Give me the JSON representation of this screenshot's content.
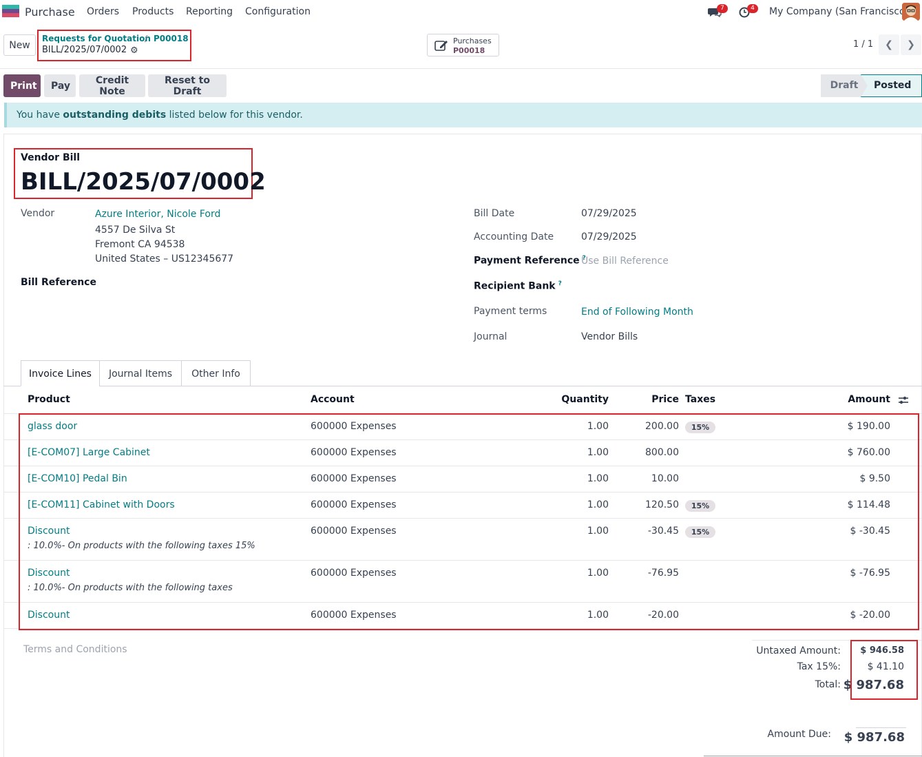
{
  "navbar": {
    "app_name": "Purchase",
    "menu": [
      "Orders",
      "Products",
      "Reporting",
      "Configuration"
    ],
    "messages_badge": "7",
    "activities_badge": "4",
    "company": "My Company (San Francisco)"
  },
  "control": {
    "new_label": "New",
    "breadcrumb_parent": "Requests for Quotation",
    "breadcrumb_separator": "/",
    "breadcrumb_mid": "P00018",
    "breadcrumb_current": "BILL/2025/07/0002",
    "smart_button_title": "Purchases",
    "smart_button_value": "P00018",
    "pager": "1 / 1"
  },
  "actions": {
    "print": "Print",
    "pay": "Pay",
    "credit_note": "Credit Note",
    "reset_to_draft": "Reset to Draft"
  },
  "status": {
    "draft": "Draft",
    "posted": "Posted",
    "active": "Posted"
  },
  "alert": {
    "prefix": "You have ",
    "bold": "outstanding debits",
    "suffix": " listed below for this vendor."
  },
  "document": {
    "type": "Vendor Bill",
    "name": "BILL/2025/07/0002"
  },
  "left_fields": {
    "vendor_label": "Vendor",
    "vendor_name": "Azure Interior, Nicole Ford",
    "address_line1": "4557 De Silva St",
    "address_line2": "Fremont CA 94538",
    "address_line3": "United States – US12345677",
    "bill_reference_label": "Bill Reference"
  },
  "right_fields": {
    "bill_date_label": "Bill Date",
    "bill_date": "07/29/2025",
    "accounting_date_label": "Accounting Date",
    "accounting_date": "07/29/2025",
    "payment_reference_label": "Payment Reference",
    "payment_reference_placeholder": "Use Bill Reference",
    "recipient_bank_label": "Recipient Bank",
    "help_mark": "?",
    "payment_terms_label": "Payment terms",
    "payment_terms": "End of Following Month",
    "journal_label": "Journal",
    "journal": "Vendor Bills"
  },
  "tabs": [
    "Invoice Lines",
    "Journal Items",
    "Other Info"
  ],
  "table": {
    "headers": {
      "product": "Product",
      "account": "Account",
      "quantity": "Quantity",
      "price": "Price",
      "taxes": "Taxes",
      "amount": "Amount"
    },
    "rows": [
      {
        "product": "glass door",
        "note": "",
        "account": "600000 Expenses",
        "quantity": "1.00",
        "price": "200.00",
        "tax": "15%",
        "amount": "$ 190.00"
      },
      {
        "product": "[E-COM07] Large Cabinet",
        "note": "",
        "account": "600000 Expenses",
        "quantity": "1.00",
        "price": "800.00",
        "tax": "",
        "amount": "$ 760.00"
      },
      {
        "product": "[E-COM10] Pedal Bin",
        "note": "",
        "account": "600000 Expenses",
        "quantity": "1.00",
        "price": "10.00",
        "tax": "",
        "amount": "$ 9.50"
      },
      {
        "product": "[E-COM11] Cabinet with Doors",
        "note": "",
        "account": "600000 Expenses",
        "quantity": "1.00",
        "price": "120.50",
        "tax": "15%",
        "amount": "$ 114.48"
      },
      {
        "product": "Discount",
        "note": ": 10.0%- On products with the following taxes 15%",
        "account": "600000 Expenses",
        "quantity": "1.00",
        "price": "-30.45",
        "tax": "15%",
        "amount": "$ -30.45"
      },
      {
        "product": "Discount",
        "note": ": 10.0%- On products with the following taxes",
        "account": "600000 Expenses",
        "quantity": "1.00",
        "price": "-76.95",
        "tax": "",
        "amount": "$ -76.95"
      },
      {
        "product": "Discount",
        "note": "",
        "account": "600000 Expenses",
        "quantity": "1.00",
        "price": "-20.00",
        "tax": "",
        "amount": "$ -20.00"
      }
    ]
  },
  "terms_placeholder": "Terms and Conditions",
  "totals": {
    "untaxed_label": "Untaxed Amount:",
    "untaxed": "$ 946.58",
    "tax_label": "Tax 15%:",
    "tax": "$ 41.10",
    "total_label": "Total:",
    "total": "$ 987.68",
    "due_label": "Amount Due:",
    "due": "$ 987.68"
  },
  "colors": {
    "brand": "#714b67",
    "link": "#017e84",
    "highlight": "#d9242b"
  }
}
